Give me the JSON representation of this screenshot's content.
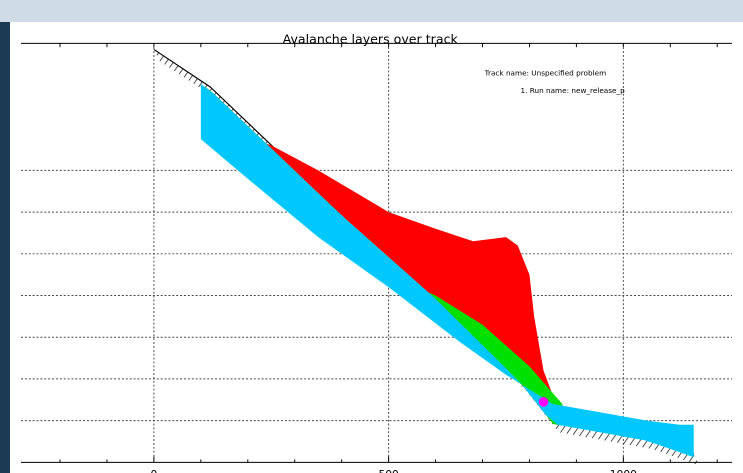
{
  "chart_data": {
    "type": "area",
    "title": "Avalanche layers over track",
    "xlabel": "",
    "ylabel": "",
    "xlim": [
      -250,
      1250
    ],
    "ylim": [
      0,
      1000
    ],
    "x_ticks": [
      0,
      500,
      1000
    ],
    "x_tick_labels": [
      "0",
      "500",
      "1000"
    ],
    "y_gridlines": [
      100,
      200,
      300,
      400,
      500,
      600,
      700
    ],
    "grid": true,
    "legend": "none",
    "annotations": {
      "track_name": "Track name: Unspecified problem",
      "run_name": "1. Run name: new_release_p"
    },
    "track": {
      "x": [
        0,
        120,
        400,
        600,
        780,
        850,
        950,
        1050,
        1150
      ],
      "y": [
        990,
        900,
        600,
        400,
        200,
        100,
        80,
        60,
        20
      ]
    },
    "series": [
      {
        "color": "#ff0000",
        "x": [
          110,
          130,
          250,
          350,
          500,
          600,
          680,
          750,
          775,
          800,
          810,
          830,
          850,
          870
        ],
        "y": [
          800,
          808,
          760,
          700,
          600,
          560,
          530,
          540,
          520,
          450,
          350,
          220,
          160,
          140
        ]
      },
      {
        "color": "#00e000",
        "x": [
          105,
          200,
          300,
          400,
          500,
          600,
          700,
          800,
          870
        ],
        "y": [
          780,
          700,
          620,
          540,
          450,
          400,
          330,
          230,
          140
        ]
      },
      {
        "color": "#00c8ff",
        "x": [
          100,
          200,
          350,
          500,
          650,
          750,
          850,
          950,
          1050,
          1120,
          1150,
          1150
        ],
        "y": [
          775,
          680,
          540,
          420,
          290,
          210,
          140,
          120,
          100,
          90,
          90,
          50
        ]
      }
    ],
    "marker": {
      "x": 830,
      "y": 145,
      "color": "#ff00ff"
    }
  }
}
